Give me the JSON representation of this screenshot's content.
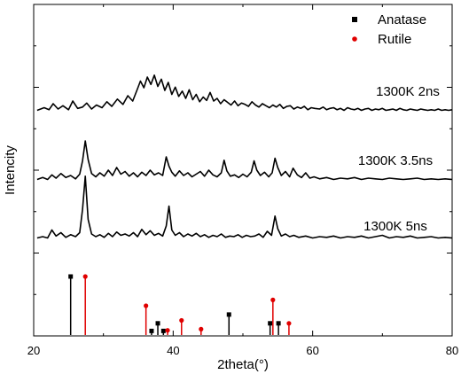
{
  "chart_data": {
    "type": "line",
    "xlabel": "2theta(°)",
    "ylabel": "Intencity",
    "xlim": [
      20,
      80
    ],
    "xticks": [
      20,
      40,
      60,
      80
    ],
    "y_scale": "arbitrary, stacked offsets, no tick labels",
    "grid": false,
    "legend": {
      "placement": "top-right",
      "entries": [
        {
          "name": "Anatase",
          "color": "#000000",
          "marker": "square"
        },
        {
          "name": "Rutile",
          "color": "#e00000",
          "marker": "circle"
        }
      ]
    },
    "series": [
      {
        "name": "1300K  2ns",
        "label": "1300K  2ns",
        "color": "#000000",
        "x": [
          20.5,
          21.5,
          22.2,
          22.8,
          23.5,
          24.2,
          25.0,
          25.6,
          26.3,
          27.0,
          27.6,
          28.3,
          29.0,
          29.8,
          30.5,
          31.2,
          32.0,
          32.8,
          33.5,
          34.2,
          34.8,
          35.3,
          35.8,
          36.3,
          36.8,
          37.3,
          37.8,
          38.3,
          38.8,
          39.3,
          39.8,
          40.3,
          40.8,
          41.3,
          41.8,
          42.3,
          42.8,
          43.3,
          43.8,
          44.3,
          44.8,
          45.3,
          45.8,
          46.3,
          46.8,
          47.3,
          47.8,
          48.3,
          48.8,
          49.3,
          49.8,
          50.3,
          50.8,
          51.3,
          51.8,
          52.3,
          52.8,
          53.3,
          53.8,
          54.3,
          54.8,
          55.3,
          55.8,
          56.3,
          56.8,
          57.3,
          57.8,
          58.3,
          58.8,
          59.3,
          59.8,
          60.3,
          61.0,
          61.5,
          62.0,
          62.5,
          63.0,
          63.5,
          64.0,
          64.5,
          65.0,
          65.5,
          66.0,
          66.5,
          67.0,
          67.5,
          68.0,
          68.5,
          69.0,
          69.5,
          70.0,
          70.5,
          71.0,
          71.5,
          72.0,
          72.5,
          73.0,
          73.5,
          74.0,
          74.5,
          75.0,
          75.5,
          76.0,
          76.5,
          77.0,
          77.5,
          78.0,
          78.5,
          79.0,
          79.5,
          80.0
        ],
        "y": [
          0.2,
          0.6,
          0.3,
          1.2,
          0.4,
          0.9,
          0.3,
          1.6,
          0.5,
          0.7,
          1.3,
          0.4,
          1.0,
          0.6,
          1.5,
          0.8,
          1.9,
          1.1,
          2.4,
          1.6,
          3.2,
          4.6,
          3.6,
          5.2,
          4.1,
          5.5,
          3.8,
          4.9,
          3.2,
          4.4,
          2.6,
          3.7,
          2.3,
          3.1,
          2.0,
          3.3,
          1.8,
          2.6,
          1.5,
          2.2,
          1.7,
          2.9,
          1.6,
          2.0,
          1.2,
          1.8,
          1.4,
          1.0,
          1.6,
          0.9,
          1.3,
          1.1,
          0.8,
          1.5,
          1.0,
          0.7,
          1.2,
          0.9,
          0.6,
          1.0,
          0.7,
          1.1,
          0.5,
          0.8,
          0.9,
          0.4,
          0.7,
          0.5,
          0.8,
          0.3,
          0.6,
          0.5,
          0.4,
          0.7,
          0.3,
          0.5,
          0.6,
          0.3,
          0.5,
          0.2,
          0.6,
          0.4,
          0.3,
          0.5,
          0.2,
          0.4,
          0.5,
          0.2,
          0.4,
          0.3,
          0.5,
          0.2,
          0.3,
          0.4,
          0.2,
          0.5,
          0.3,
          0.2,
          0.4,
          0.3,
          0.2,
          0.4,
          0.3,
          0.2,
          0.3,
          0.2,
          0.4,
          0.2,
          0.3,
          0.2,
          0.3
        ]
      },
      {
        "name": "1300K  3.5ns",
        "label": "1300K  3.5ns",
        "color": "#000000",
        "x": [
          20.5,
          21.3,
          22.0,
          22.6,
          23.2,
          23.9,
          24.6,
          25.3,
          26.0,
          26.6,
          27.0,
          27.4,
          27.8,
          28.3,
          28.9,
          29.5,
          30.1,
          30.7,
          31.3,
          31.9,
          32.5,
          33.1,
          33.7,
          34.3,
          34.9,
          35.5,
          36.1,
          36.7,
          37.3,
          37.9,
          38.5,
          39.0,
          39.4,
          39.8,
          40.3,
          40.9,
          41.5,
          42.1,
          42.7,
          43.3,
          43.9,
          44.5,
          45.1,
          45.7,
          46.3,
          46.9,
          47.3,
          47.7,
          48.2,
          48.8,
          49.4,
          50.0,
          50.6,
          51.2,
          51.6,
          52.0,
          52.5,
          53.1,
          53.7,
          54.2,
          54.6,
          55.0,
          55.5,
          56.1,
          56.7,
          57.2,
          57.8,
          58.4,
          59.0,
          59.6,
          60.2,
          61.0,
          62.0,
          63.0,
          64.0,
          65.0,
          66.0,
          67.0,
          68.0,
          69.0,
          70.0,
          71.0,
          72.0,
          73.0,
          74.0,
          75.0,
          76.0,
          77.0,
          78.0,
          79.0,
          80.0
        ],
        "y": [
          0.2,
          0.5,
          0.2,
          0.9,
          0.4,
          1.1,
          0.5,
          0.8,
          0.3,
          1.0,
          3.0,
          6.0,
          3.2,
          1.1,
          0.6,
          1.2,
          0.7,
          1.6,
          0.8,
          2.0,
          1.0,
          1.4,
          0.7,
          1.2,
          0.6,
          1.3,
          0.8,
          1.6,
          0.9,
          1.2,
          0.8,
          3.6,
          2.2,
          1.3,
          0.7,
          1.5,
          0.8,
          1.2,
          0.6,
          1.0,
          1.4,
          0.7,
          1.6,
          0.9,
          0.6,
          1.2,
          3.1,
          1.5,
          0.7,
          0.9,
          0.5,
          1.0,
          0.6,
          1.3,
          3.0,
          1.6,
          0.8,
          1.3,
          0.6,
          1.2,
          3.4,
          2.0,
          0.8,
          1.4,
          0.6,
          1.9,
          0.9,
          0.5,
          1.2,
          0.4,
          0.6,
          0.3,
          0.5,
          0.2,
          0.4,
          0.3,
          0.5,
          0.2,
          0.4,
          0.3,
          0.2,
          0.4,
          0.3,
          0.2,
          0.3,
          0.4,
          0.2,
          0.3,
          0.2,
          0.3,
          0.2
        ]
      },
      {
        "name": "1300K  5ns",
        "label": "1300K  5ns",
        "color": "#000000",
        "x": [
          20.5,
          21.3,
          22.0,
          22.6,
          23.2,
          23.9,
          24.6,
          25.3,
          26.0,
          26.6,
          27.0,
          27.4,
          27.8,
          28.3,
          28.9,
          29.5,
          30.1,
          30.7,
          31.3,
          31.9,
          32.5,
          33.1,
          33.7,
          34.3,
          34.9,
          35.5,
          36.1,
          36.7,
          37.3,
          37.9,
          38.5,
          39.0,
          39.4,
          39.8,
          40.3,
          40.9,
          41.5,
          42.1,
          42.7,
          43.3,
          43.9,
          44.5,
          45.1,
          45.7,
          46.3,
          46.9,
          47.5,
          48.1,
          48.7,
          49.3,
          49.9,
          50.5,
          51.1,
          51.7,
          52.3,
          52.9,
          53.5,
          54.1,
          54.6,
          55.0,
          55.5,
          56.1,
          56.7,
          57.3,
          58.0,
          59.0,
          60.0,
          61.0,
          62.0,
          63.0,
          64.0,
          65.0,
          66.0,
          67.0,
          68.0,
          69.0,
          70.0,
          71.0,
          72.0,
          73.0,
          74.0,
          75.0,
          76.0,
          77.0,
          78.0,
          79.0,
          80.0
        ],
        "y": [
          0.2,
          0.4,
          0.2,
          1.4,
          0.5,
          1.0,
          0.3,
          0.7,
          0.4,
          1.0,
          4.5,
          9.5,
          3.0,
          0.8,
          0.4,
          0.7,
          0.3,
          0.9,
          0.4,
          1.1,
          0.6,
          0.8,
          0.5,
          1.0,
          0.4,
          1.5,
          0.7,
          1.3,
          0.6,
          0.9,
          0.5,
          2.0,
          5.0,
          1.4,
          0.6,
          1.0,
          0.4,
          0.8,
          0.5,
          0.9,
          0.4,
          0.7,
          0.3,
          0.6,
          0.4,
          0.8,
          0.3,
          0.5,
          0.4,
          0.7,
          0.3,
          0.6,
          0.4,
          0.5,
          0.8,
          0.3,
          1.2,
          0.6,
          3.5,
          1.6,
          0.5,
          0.8,
          0.4,
          0.6,
          0.3,
          0.5,
          0.2,
          0.4,
          0.3,
          0.5,
          0.2,
          0.4,
          0.3,
          0.5,
          0.2,
          0.4,
          0.6,
          0.2,
          0.4,
          0.3,
          0.5,
          0.2,
          0.3,
          0.4,
          0.2,
          0.3,
          0.2
        ]
      }
    ],
    "reference_lines": {
      "Anatase": [
        {
          "x": 25.3,
          "intensity": 100
        },
        {
          "x": 36.9,
          "intensity": 7
        },
        {
          "x": 37.8,
          "intensity": 20
        },
        {
          "x": 38.6,
          "intensity": 7
        },
        {
          "x": 48.0,
          "intensity": 35
        },
        {
          "x": 53.9,
          "intensity": 20
        },
        {
          "x": 55.1,
          "intensity": 20
        }
      ],
      "Rutile": [
        {
          "x": 27.4,
          "intensity": 100
        },
        {
          "x": 36.1,
          "intensity": 50
        },
        {
          "x": 39.2,
          "intensity": 8
        },
        {
          "x": 41.2,
          "intensity": 25
        },
        {
          "x": 44.0,
          "intensity": 10
        },
        {
          "x": 54.3,
          "intensity": 60
        },
        {
          "x": 56.6,
          "intensity": 20
        }
      ]
    }
  }
}
